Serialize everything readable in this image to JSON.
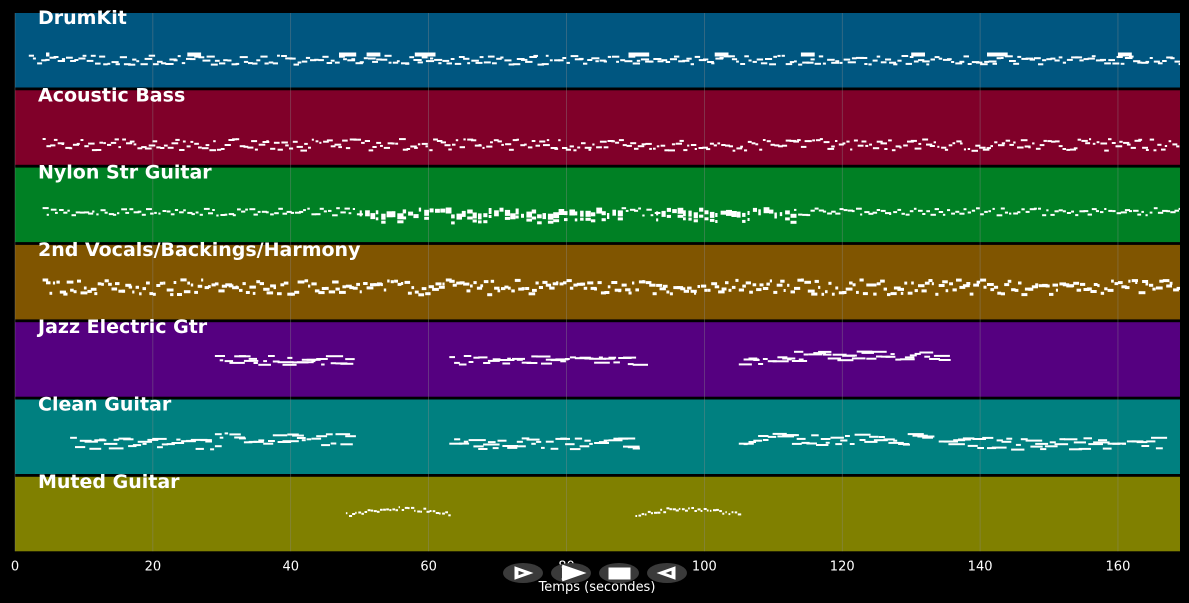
{
  "tracks": [
    {
      "name": "DrumKit",
      "color": "#005680",
      "style": "drums"
    },
    {
      "name": "Acoustic Bass",
      "color": "#800029",
      "style": "bass"
    },
    {
      "name": "Nylon Str Guitar",
      "color": "#008024",
      "style": "nylon"
    },
    {
      "name": "2nd Vocals/Backings/Harmony",
      "color": "#805500",
      "style": "vocals"
    },
    {
      "name": "Jazz Electric Gtr",
      "color": "#550080",
      "style": "jazz"
    },
    {
      "name": "Clean Guitar",
      "color": "#008080",
      "style": "clean"
    },
    {
      "name": "Muted Guitar",
      "color": "#808000",
      "style": "muted"
    }
  ],
  "axis": {
    "xlabel": "Temps (secondes)",
    "xmin": 0,
    "xmax": 169,
    "ticks": [
      0,
      20,
      40,
      60,
      80,
      100,
      120,
      140,
      160
    ]
  },
  "controls": [
    {
      "name": "play-button",
      "icon": "play-outline-icon"
    },
    {
      "name": "forward-button",
      "icon": "chevron-right-icon"
    },
    {
      "name": "stop-button",
      "icon": "stop-icon"
    },
    {
      "name": "rewind-button",
      "icon": "play-reverse-outline-icon"
    }
  ],
  "theme": {
    "background": "#000000",
    "grid": "#8a8a8a",
    "note": "#ffffff"
  }
}
